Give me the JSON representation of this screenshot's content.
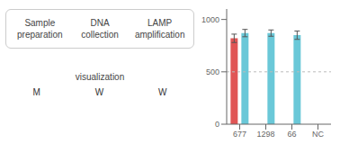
{
  "chart_data": {
    "type": "bar",
    "categories": [
      "677",
      "1298",
      "66",
      "NC"
    ],
    "series": [
      {
        "color": "#e05555",
        "values": [
          820,
          0,
          0,
          0
        ],
        "errors": [
          40,
          0,
          0,
          0
        ]
      },
      {
        "color": "#6ac8d8",
        "values": [
          870,
          870,
          850,
          0
        ],
        "errors": [
          35,
          30,
          40,
          0
        ]
      }
    ],
    "ylim": [
      0,
      1100
    ],
    "yticks": [
      0,
      500,
      1000
    ],
    "reference_line": {
      "y": 500
    },
    "annotations": [
      "Sample\npreparation",
      "DNA\ncollection",
      "LAMP\namplification",
      "visualization",
      "M",
      "W",
      "W"
    ]
  }
}
